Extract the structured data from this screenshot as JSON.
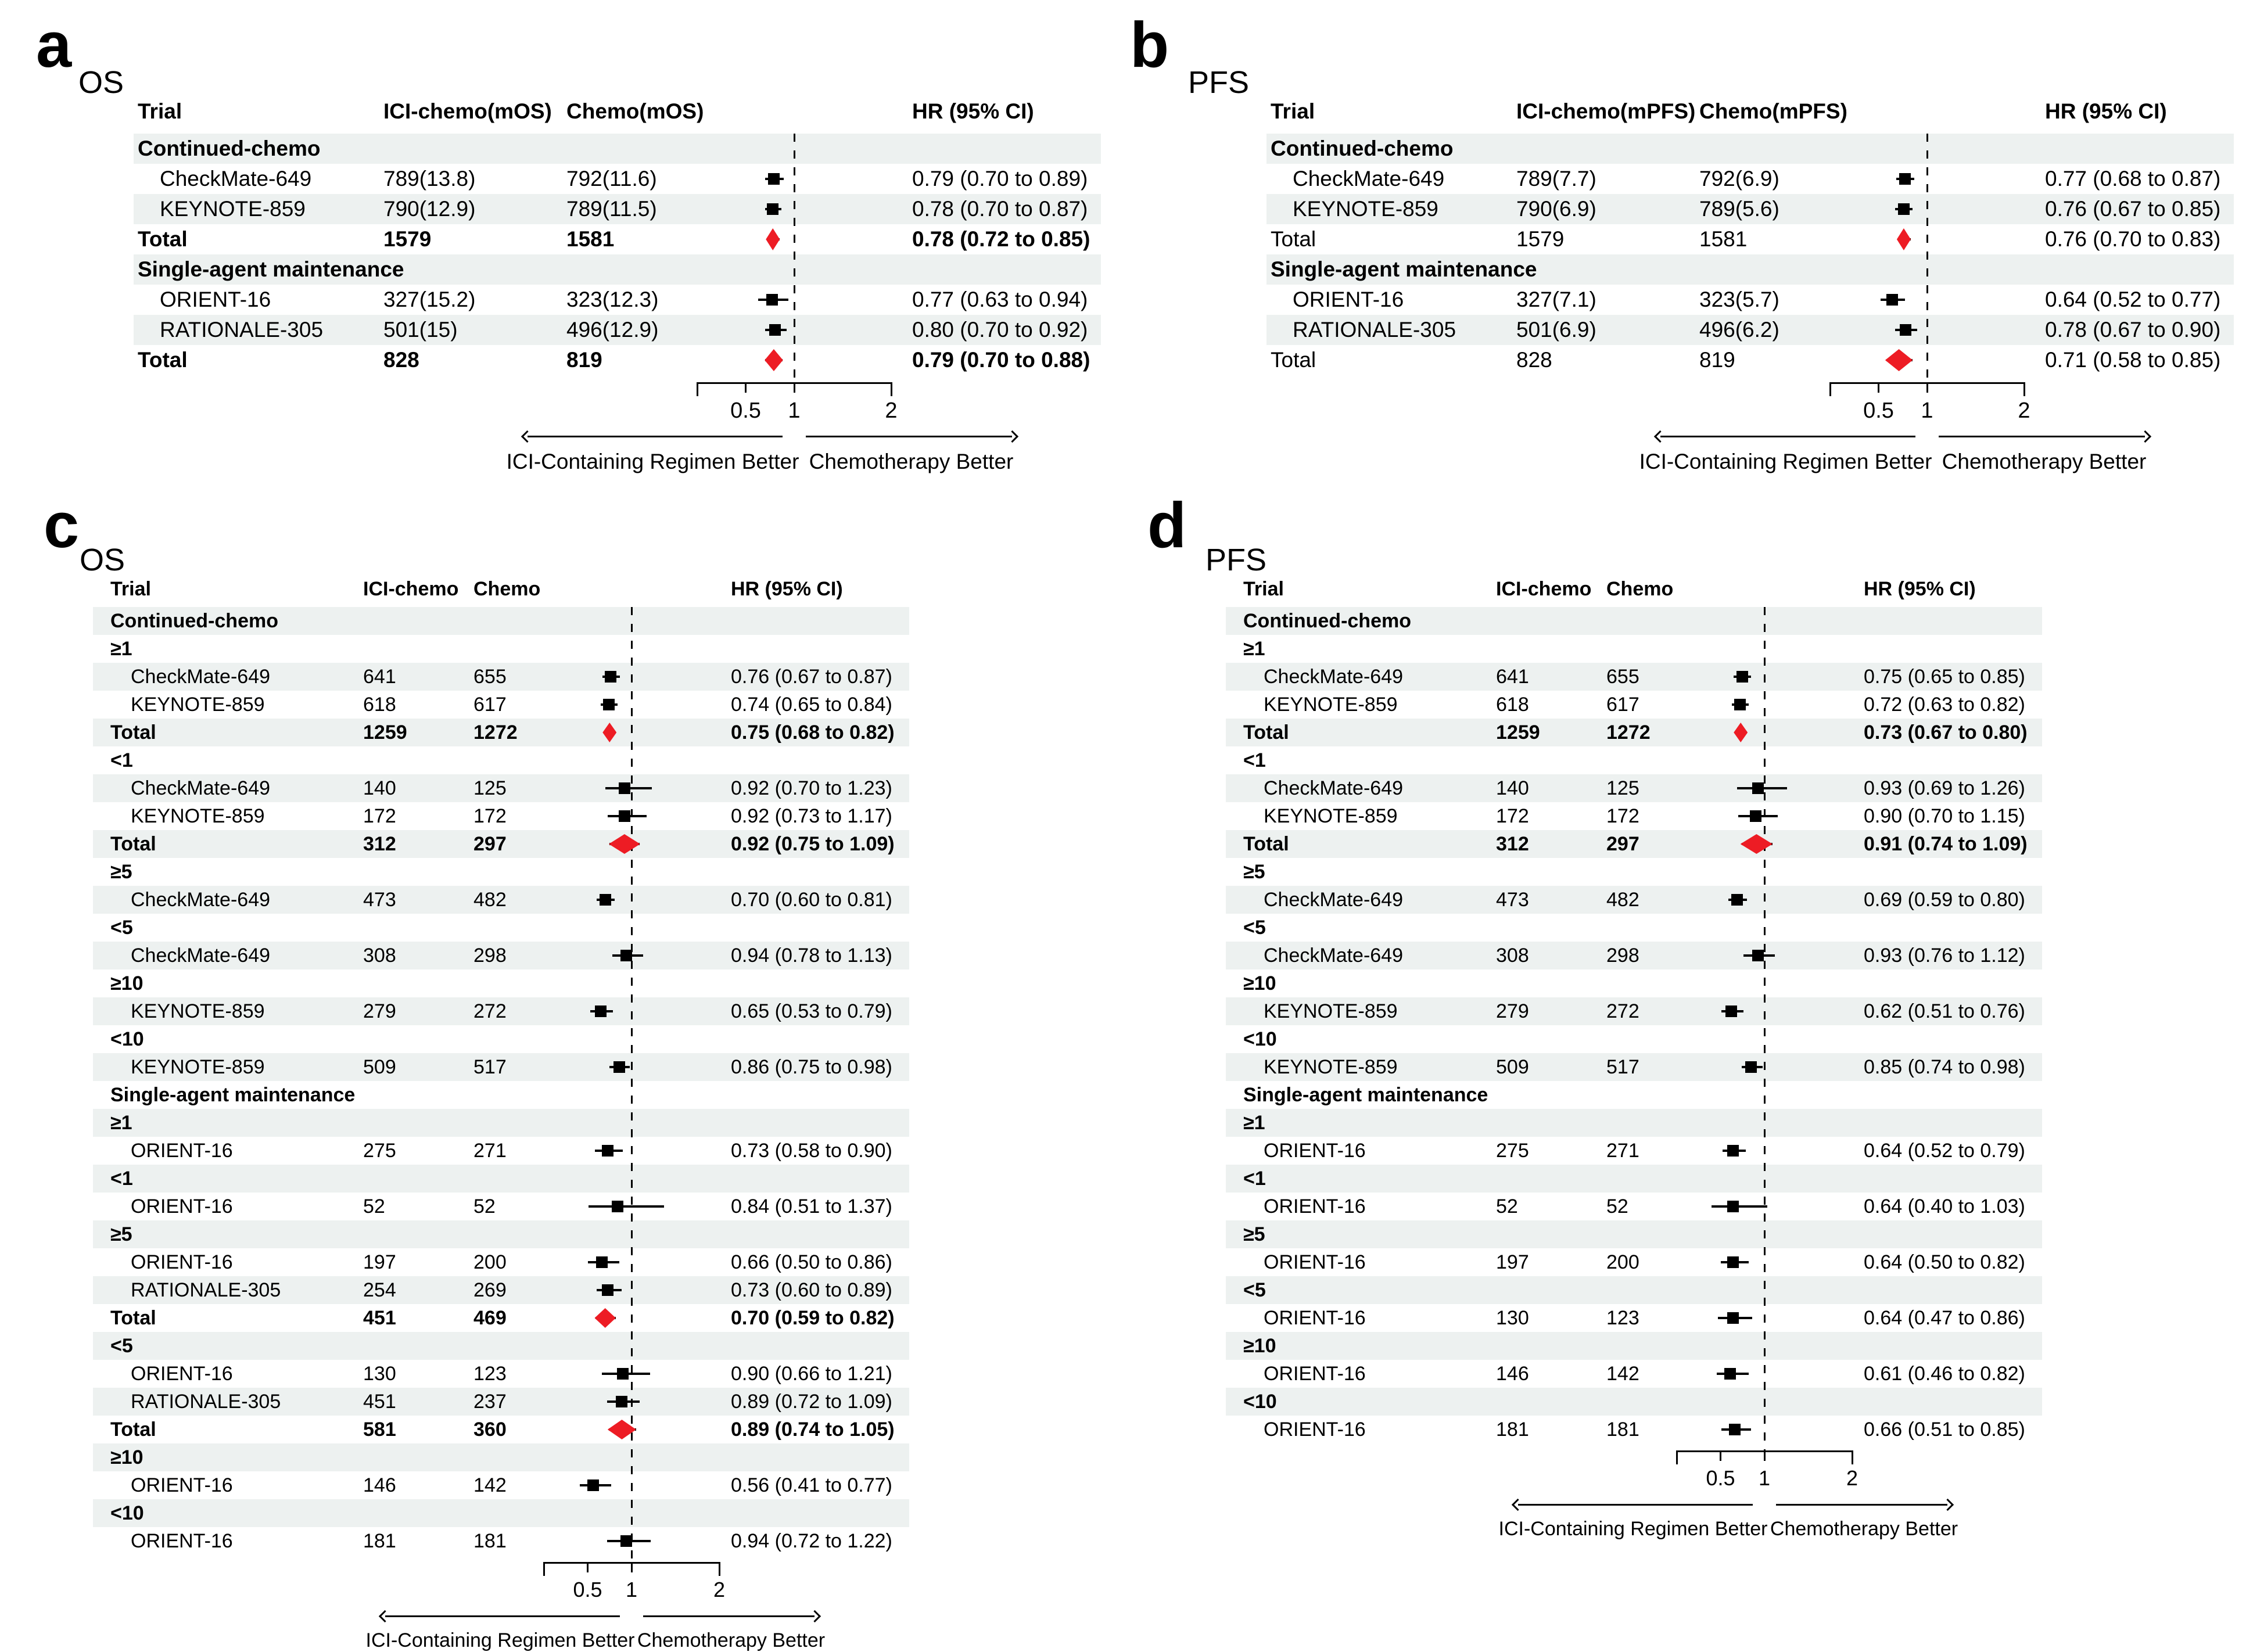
{
  "chart_data": {
    "type": "forest",
    "description": "Four forest plot panels of hazard ratios comparing ICI-containing regimens vs chemotherapy",
    "colors": {
      "summary_diamond": "#ed1c24",
      "marker": "#000000",
      "stripe": "#edf1f0",
      "text": "#000000"
    },
    "hr_axis": {
      "scale": "linear",
      "range": [
        0,
        2
      ],
      "ticks": [
        0.5,
        1,
        2
      ],
      "tick_labels": [
        "0.5",
        "1",
        "2"
      ],
      "null_line": 1,
      "left_arrow_label": "ICI-Containing Regimen Better",
      "right_arrow_label": "Chemotherapy Better"
    },
    "panels": [
      {
        "letter": "a",
        "endpoint": "OS",
        "columns": [
          "Trial",
          "ICI-chemo(mOS)",
          "Chemo(mOS)",
          "HR (95% CI)"
        ],
        "rows": [
          {
            "kind": "group",
            "label": "Continued-chemo",
            "bold": true
          },
          {
            "kind": "study",
            "label": "CheckMate-649",
            "bold": false,
            "n1": "789(13.8)",
            "n2": "792(11.6)",
            "hr": 0.79,
            "lo": 0.7,
            "hi": 0.89,
            "hr_text": "0.79 (0.70 to 0.89)"
          },
          {
            "kind": "study",
            "label": "KEYNOTE-859",
            "bold": false,
            "n1": "790(12.9)",
            "n2": "789(11.5)",
            "hr": 0.78,
            "lo": 0.7,
            "hi": 0.87,
            "hr_text": "0.78 (0.70 to 0.87)"
          },
          {
            "kind": "total",
            "label": "Total",
            "bold": true,
            "n1": "1579",
            "n2": "1581",
            "hr": 0.78,
            "lo": 0.72,
            "hi": 0.85,
            "hr_text": "0.78 (0.72 to 0.85)"
          },
          {
            "kind": "group",
            "label": "Single-agent maintenance",
            "bold": true
          },
          {
            "kind": "study",
            "label": "ORIENT-16",
            "bold": false,
            "n1": "327(15.2)",
            "n2": "323(12.3)",
            "hr": 0.77,
            "lo": 0.63,
            "hi": 0.94,
            "hr_text": "0.77 (0.63 to 0.94)"
          },
          {
            "kind": "study",
            "label": "RATIONALE-305",
            "bold": false,
            "n1": "501(15)",
            "n2": "496(12.9)",
            "hr": 0.8,
            "lo": 0.7,
            "hi": 0.92,
            "hr_text": "0.80 (0.70 to 0.92)"
          },
          {
            "kind": "total",
            "label": "Total",
            "bold": true,
            "n1": "828",
            "n2": "819",
            "hr": 0.79,
            "lo": 0.7,
            "hi": 0.88,
            "hr_text": "0.79 (0.70 to 0.88)"
          }
        ]
      },
      {
        "letter": "b",
        "endpoint": "PFS",
        "columns": [
          "Trial",
          "ICI-chemo(mPFS)",
          "Chemo(mPFS)",
          "HR (95% CI)"
        ],
        "rows": [
          {
            "kind": "group",
            "label": "Continued-chemo",
            "bold": true
          },
          {
            "kind": "study",
            "label": "CheckMate-649",
            "bold": false,
            "n1": "789(7.7)",
            "n2": "792(6.9)",
            "hr": 0.77,
            "lo": 0.68,
            "hi": 0.87,
            "hr_text": "0.77 (0.68 to 0.87)"
          },
          {
            "kind": "study",
            "label": "KEYNOTE-859",
            "bold": false,
            "n1": "790(6.9)",
            "n2": "789(5.6)",
            "hr": 0.76,
            "lo": 0.67,
            "hi": 0.85,
            "hr_text": "0.76 (0.67 to 0.85)"
          },
          {
            "kind": "total",
            "label": "Total",
            "bold": false,
            "n1": "1579",
            "n2": "1581",
            "hr": 0.76,
            "lo": 0.7,
            "hi": 0.83,
            "hr_text": "0.76 (0.70 to 0.83)"
          },
          {
            "kind": "group",
            "label": "Single-agent maintenance",
            "bold": true
          },
          {
            "kind": "study",
            "label": "ORIENT-16",
            "bold": false,
            "n1": "327(7.1)",
            "n2": "323(5.7)",
            "hr": 0.64,
            "lo": 0.52,
            "hi": 0.77,
            "hr_text": "0.64 (0.52 to 0.77)"
          },
          {
            "kind": "study",
            "label": "RATIONALE-305",
            "bold": false,
            "n1": "501(6.9)",
            "n2": "496(6.2)",
            "hr": 0.78,
            "lo": 0.67,
            "hi": 0.9,
            "hr_text": "0.78 (0.67 to 0.90)"
          },
          {
            "kind": "total",
            "label": "Total",
            "bold": false,
            "n1": "828",
            "n2": "819",
            "hr": 0.71,
            "lo": 0.58,
            "hi": 0.85,
            "hr_text": "0.71 (0.58 to 0.85)"
          }
        ]
      },
      {
        "letter": "c",
        "endpoint": "OS",
        "columns": [
          "Trial",
          "ICI-chemo",
          "Chemo",
          "HR (95% CI)"
        ],
        "rows": [
          {
            "kind": "group",
            "label": "Continued-chemo",
            "bold": true
          },
          {
            "kind": "group",
            "label": "≥1",
            "bold": true
          },
          {
            "kind": "study",
            "label": "CheckMate-649",
            "bold": false,
            "n1": "641",
            "n2": "655",
            "hr": 0.76,
            "lo": 0.67,
            "hi": 0.87,
            "hr_text": "0.76 (0.67 to 0.87)"
          },
          {
            "kind": "study",
            "label": "KEYNOTE-859",
            "bold": false,
            "n1": "618",
            "n2": "617",
            "hr": 0.74,
            "lo": 0.65,
            "hi": 0.84,
            "hr_text": "0.74 (0.65 to 0.84)"
          },
          {
            "kind": "total",
            "label": "Total",
            "bold": true,
            "n1": "1259",
            "n2": "1272",
            "hr": 0.75,
            "lo": 0.68,
            "hi": 0.82,
            "hr_text": "0.75 (0.68 to 0.82)"
          },
          {
            "kind": "group",
            "label": "<1",
            "bold": true
          },
          {
            "kind": "study",
            "label": "CheckMate-649",
            "bold": false,
            "n1": "140",
            "n2": "125",
            "hr": 0.92,
            "lo": 0.7,
            "hi": 1.23,
            "hr_text": "0.92 (0.70 to 1.23)"
          },
          {
            "kind": "study",
            "label": "KEYNOTE-859",
            "bold": false,
            "n1": "172",
            "n2": "172",
            "hr": 0.92,
            "lo": 0.73,
            "hi": 1.17,
            "hr_text": "0.92 (0.73 to 1.17)"
          },
          {
            "kind": "total",
            "label": "Total",
            "bold": true,
            "n1": "312",
            "n2": "297",
            "hr": 0.92,
            "lo": 0.75,
            "hi": 1.09,
            "hr_text": "0.92 (0.75 to 1.09)"
          },
          {
            "kind": "group",
            "label": "≥5",
            "bold": true
          },
          {
            "kind": "study",
            "label": "CheckMate-649",
            "bold": false,
            "n1": "473",
            "n2": "482",
            "hr": 0.7,
            "lo": 0.6,
            "hi": 0.81,
            "hr_text": "0.70 (0.60 to 0.81)"
          },
          {
            "kind": "group",
            "label": "<5",
            "bold": true
          },
          {
            "kind": "study",
            "label": "CheckMate-649",
            "bold": false,
            "n1": "308",
            "n2": "298",
            "hr": 0.94,
            "lo": 0.78,
            "hi": 1.13,
            "hr_text": "0.94 (0.78 to 1.13)"
          },
          {
            "kind": "group",
            "label": "≥10",
            "bold": true
          },
          {
            "kind": "study",
            "label": "KEYNOTE-859",
            "bold": false,
            "n1": "279",
            "n2": "272",
            "hr": 0.65,
            "lo": 0.53,
            "hi": 0.79,
            "hr_text": "0.65 (0.53 to 0.79)"
          },
          {
            "kind": "group",
            "label": "<10",
            "bold": true
          },
          {
            "kind": "study",
            "label": "KEYNOTE-859",
            "bold": false,
            "n1": "509",
            "n2": "517",
            "hr": 0.86,
            "lo": 0.75,
            "hi": 0.98,
            "hr_text": "0.86 (0.75 to 0.98)"
          },
          {
            "kind": "group",
            "label": "Single-agent maintenance",
            "bold": true
          },
          {
            "kind": "group",
            "label": "≥1",
            "bold": true
          },
          {
            "kind": "study",
            "label": "ORIENT-16",
            "bold": false,
            "n1": "275",
            "n2": "271",
            "hr": 0.73,
            "lo": 0.58,
            "hi": 0.9,
            "hr_text": "0.73 (0.58 to 0.90)"
          },
          {
            "kind": "group",
            "label": "<1",
            "bold": true
          },
          {
            "kind": "study",
            "label": "ORIENT-16",
            "bold": false,
            "n1": "52",
            "n2": "52",
            "hr": 0.84,
            "lo": 0.51,
            "hi": 1.37,
            "hr_text": "0.84 (0.51 to 1.37)"
          },
          {
            "kind": "group",
            "label": "≥5",
            "bold": true
          },
          {
            "kind": "study",
            "label": "ORIENT-16",
            "bold": false,
            "n1": "197",
            "n2": "200",
            "hr": 0.66,
            "lo": 0.5,
            "hi": 0.86,
            "hr_text": "0.66 (0.50 to 0.86)"
          },
          {
            "kind": "study",
            "label": "RATIONALE-305",
            "bold": false,
            "n1": "254",
            "n2": "269",
            "hr": 0.73,
            "lo": 0.6,
            "hi": 0.89,
            "hr_text": "0.73 (0.60 to 0.89)"
          },
          {
            "kind": "total",
            "label": "Total",
            "bold": true,
            "n1": "451",
            "n2": "469",
            "hr": 0.7,
            "lo": 0.59,
            "hi": 0.82,
            "hr_text": "0.70 (0.59 to 0.82)"
          },
          {
            "kind": "group",
            "label": "<5",
            "bold": true
          },
          {
            "kind": "study",
            "label": "ORIENT-16",
            "bold": false,
            "n1": "130",
            "n2": "123",
            "hr": 0.9,
            "lo": 0.66,
            "hi": 1.21,
            "hr_text": "0.90 (0.66 to 1.21)"
          },
          {
            "kind": "study",
            "label": "RATIONALE-305",
            "bold": false,
            "n1": "451",
            "n2": "237",
            "hr": 0.89,
            "lo": 0.72,
            "hi": 1.09,
            "hr_text": "0.89 (0.72 to 1.09)"
          },
          {
            "kind": "total",
            "label": "Total",
            "bold": true,
            "n1": "581",
            "n2": "360",
            "hr": 0.89,
            "lo": 0.74,
            "hi": 1.05,
            "hr_text": "0.89 (0.74 to 1.05)"
          },
          {
            "kind": "group",
            "label": "≥10",
            "bold": true
          },
          {
            "kind": "study",
            "label": "ORIENT-16",
            "bold": false,
            "n1": "146",
            "n2": "142",
            "hr": 0.56,
            "lo": 0.41,
            "hi": 0.77,
            "hr_text": "0.56 (0.41 to 0.77)"
          },
          {
            "kind": "group",
            "label": "<10",
            "bold": true
          },
          {
            "kind": "study",
            "label": "ORIENT-16",
            "bold": false,
            "n1": "181",
            "n2": "181",
            "hr": 0.94,
            "lo": 0.72,
            "hi": 1.22,
            "hr_text": "0.94 (0.72 to 1.22)"
          }
        ]
      },
      {
        "letter": "d",
        "endpoint": "PFS",
        "columns": [
          "Trial",
          "ICI-chemo",
          "Chemo",
          "HR (95% CI)"
        ],
        "rows": [
          {
            "kind": "group",
            "label": "Continued-chemo",
            "bold": true
          },
          {
            "kind": "group",
            "label": "≥1",
            "bold": true
          },
          {
            "kind": "study",
            "label": "CheckMate-649",
            "bold": false,
            "n1": "641",
            "n2": "655",
            "hr": 0.75,
            "lo": 0.65,
            "hi": 0.85,
            "hr_text": "0.75 (0.65 to 0.85)"
          },
          {
            "kind": "study",
            "label": "KEYNOTE-859",
            "bold": false,
            "n1": "618",
            "n2": "617",
            "hr": 0.72,
            "lo": 0.63,
            "hi": 0.82,
            "hr_text": "0.72 (0.63 to 0.82)"
          },
          {
            "kind": "total",
            "label": "Total",
            "bold": true,
            "n1": "1259",
            "n2": "1272",
            "hr": 0.73,
            "lo": 0.67,
            "hi": 0.8,
            "hr_text": "0.73 (0.67 to 0.80)"
          },
          {
            "kind": "group",
            "label": "<1",
            "bold": true
          },
          {
            "kind": "study",
            "label": "CheckMate-649",
            "bold": false,
            "n1": "140",
            "n2": "125",
            "hr": 0.93,
            "lo": 0.69,
            "hi": 1.26,
            "hr_text": "0.93 (0.69 to 1.26)"
          },
          {
            "kind": "study",
            "label": "KEYNOTE-859",
            "bold": false,
            "n1": "172",
            "n2": "172",
            "hr": 0.9,
            "lo": 0.7,
            "hi": 1.15,
            "hr_text": "0.90 (0.70 to 1.15)"
          },
          {
            "kind": "total",
            "label": "Total",
            "bold": true,
            "n1": "312",
            "n2": "297",
            "hr": 0.91,
            "lo": 0.74,
            "hi": 1.09,
            "hr_text": "0.91 (0.74 to 1.09)"
          },
          {
            "kind": "group",
            "label": "≥5",
            "bold": true
          },
          {
            "kind": "study",
            "label": "CheckMate-649",
            "bold": false,
            "n1": "473",
            "n2": "482",
            "hr": 0.69,
            "lo": 0.59,
            "hi": 0.8,
            "hr_text": "0.69 (0.59 to 0.80)"
          },
          {
            "kind": "group",
            "label": "<5",
            "bold": true
          },
          {
            "kind": "study",
            "label": "CheckMate-649",
            "bold": false,
            "n1": "308",
            "n2": "298",
            "hr": 0.93,
            "lo": 0.76,
            "hi": 1.12,
            "hr_text": "0.93 (0.76 to 1.12)"
          },
          {
            "kind": "group",
            "label": "≥10",
            "bold": true
          },
          {
            "kind": "study",
            "label": "KEYNOTE-859",
            "bold": false,
            "n1": "279",
            "n2": "272",
            "hr": 0.62,
            "lo": 0.51,
            "hi": 0.76,
            "hr_text": "0.62 (0.51 to 0.76)"
          },
          {
            "kind": "group",
            "label": "<10",
            "bold": true
          },
          {
            "kind": "study",
            "label": "KEYNOTE-859",
            "bold": false,
            "n1": "509",
            "n2": "517",
            "hr": 0.85,
            "lo": 0.74,
            "hi": 0.98,
            "hr_text": "0.85 (0.74 to 0.98)"
          },
          {
            "kind": "group",
            "label": "Single-agent maintenance",
            "bold": true
          },
          {
            "kind": "group",
            "label": "≥1",
            "bold": true
          },
          {
            "kind": "study",
            "label": "ORIENT-16",
            "bold": false,
            "n1": "275",
            "n2": "271",
            "hr": 0.64,
            "lo": 0.52,
            "hi": 0.79,
            "hr_text": "0.64 (0.52 to 0.79)"
          },
          {
            "kind": "group",
            "label": "<1",
            "bold": true
          },
          {
            "kind": "study",
            "label": "ORIENT-16",
            "bold": false,
            "n1": "52",
            "n2": "52",
            "hr": 0.64,
            "lo": 0.4,
            "hi": 1.03,
            "hr_text": "0.64 (0.40 to 1.03)"
          },
          {
            "kind": "group",
            "label": "≥5",
            "bold": true
          },
          {
            "kind": "study",
            "label": "ORIENT-16",
            "bold": false,
            "n1": "197",
            "n2": "200",
            "hr": 0.64,
            "lo": 0.5,
            "hi": 0.82,
            "hr_text": "0.64 (0.50 to 0.82)"
          },
          {
            "kind": "group",
            "label": "<5",
            "bold": true
          },
          {
            "kind": "study",
            "label": "ORIENT-16",
            "bold": false,
            "n1": "130",
            "n2": "123",
            "hr": 0.64,
            "lo": 0.47,
            "hi": 0.86,
            "hr_text": "0.64 (0.47 to 0.86)"
          },
          {
            "kind": "group",
            "label": "≥10",
            "bold": true
          },
          {
            "kind": "study",
            "label": "ORIENT-16",
            "bold": false,
            "n1": "146",
            "n2": "142",
            "hr": 0.61,
            "lo": 0.46,
            "hi": 0.82,
            "hr_text": "0.61 (0.46 to 0.82)"
          },
          {
            "kind": "group",
            "label": "<10",
            "bold": true
          },
          {
            "kind": "study",
            "label": "ORIENT-16",
            "bold": false,
            "n1": "181",
            "n2": "181",
            "hr": 0.66,
            "lo": 0.51,
            "hi": 0.85,
            "hr_text": "0.66 (0.51 to 0.85)"
          }
        ]
      }
    ]
  }
}
